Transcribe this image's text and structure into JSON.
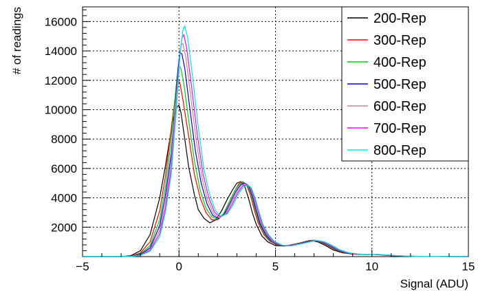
{
  "chart_data": {
    "type": "line",
    "title": "",
    "xlabel": "Signal (ADU)",
    "ylabel": "# of readings",
    "xlim": [
      -5,
      15
    ],
    "ylim": [
      0,
      17000
    ],
    "xticks": [
      -5,
      0,
      5,
      10,
      15
    ],
    "yticks": [
      2000,
      4000,
      6000,
      8000,
      10000,
      12000,
      14000,
      16000
    ],
    "grid": true,
    "legend_position": "top-right",
    "series": [
      {
        "name": "200-Rep",
        "color": "#000000",
        "x": [
          -5,
          -3,
          -2.5,
          -2,
          -1.5,
          -1,
          -0.7,
          -0.5,
          -0.3,
          -0.1,
          0,
          0.1,
          0.3,
          0.5,
          0.8,
          1.0,
          1.3,
          1.6,
          1.9,
          2.2,
          2.5,
          2.8,
          3.0,
          3.2,
          3.4,
          3.6,
          3.8,
          4.0,
          4.3,
          4.6,
          5.0,
          5.5,
          6.0,
          6.5,
          6.8,
          7.2,
          7.6,
          8.0,
          8.5,
          9.0,
          9.5,
          10.0,
          10.5,
          11.0,
          12.0,
          13.0,
          15.0
        ],
        "y": [
          0,
          0,
          60,
          400,
          1500,
          4000,
          6200,
          7800,
          9300,
          10200,
          10300,
          9800,
          8000,
          6100,
          4200,
          3200,
          2600,
          2300,
          2500,
          3100,
          3900,
          4600,
          5000,
          5100,
          4800,
          4000,
          3000,
          2200,
          1400,
          1000,
          750,
          720,
          850,
          1000,
          1100,
          1000,
          750,
          450,
          250,
          170,
          140,
          150,
          110,
          60,
          20,
          5,
          0
        ]
      },
      {
        "name": "300-Rep",
        "color": "#ff0000",
        "x": [
          -5,
          -3,
          -2.5,
          -2,
          -1.5,
          -1,
          -0.7,
          -0.5,
          -0.3,
          -0.15,
          -0.05,
          0.05,
          0.2,
          0.5,
          0.8,
          1.1,
          1.4,
          1.7,
          2.0,
          2.3,
          2.6,
          2.9,
          3.1,
          3.3,
          3.5,
          3.7,
          3.9,
          4.1,
          4.4,
          4.7,
          5.1,
          5.6,
          6.1,
          6.6,
          6.9,
          7.3,
          7.7,
          8.1,
          8.6,
          9.1,
          9.6,
          10.1,
          10.6,
          11.1,
          12.1,
          13.1,
          15.0
        ],
        "y": [
          0,
          0,
          30,
          250,
          1000,
          3100,
          5500,
          7600,
          9800,
          11200,
          12000,
          11800,
          10700,
          8200,
          5600,
          4000,
          3000,
          2500,
          2500,
          2900,
          3700,
          4500,
          4950,
          5100,
          4900,
          4200,
          3200,
          2300,
          1500,
          1050,
          780,
          730,
          860,
          1010,
          1110,
          1010,
          760,
          460,
          255,
          175,
          140,
          150,
          110,
          60,
          20,
          5,
          0
        ]
      },
      {
        "name": "400-Rep",
        "color": "#00cc00",
        "x": [
          -5,
          -3,
          -2.5,
          -2,
          -1.5,
          -1,
          -0.7,
          -0.45,
          -0.25,
          -0.1,
          0.0,
          0.1,
          0.25,
          0.5,
          0.8,
          1.1,
          1.4,
          1.7,
          2.0,
          2.3,
          2.6,
          2.9,
          3.15,
          3.35,
          3.55,
          3.75,
          3.95,
          4.15,
          4.45,
          4.75,
          5.15,
          5.65,
          6.15,
          6.65,
          6.95,
          7.35,
          7.75,
          8.15,
          8.65,
          9.15,
          9.65,
          10.15,
          10.65,
          11.15,
          12.15,
          13.15,
          15.0
        ],
        "y": [
          0,
          0,
          20,
          180,
          750,
          2500,
          4800,
          7400,
          10200,
          12200,
          13000,
          12800,
          11800,
          9300,
          6500,
          4500,
          3300,
          2700,
          2550,
          2900,
          3700,
          4500,
          4950,
          5050,
          4900,
          4200,
          3200,
          2300,
          1500,
          1050,
          780,
          730,
          860,
          1010,
          1110,
          1010,
          760,
          460,
          255,
          175,
          140,
          150,
          110,
          60,
          20,
          5,
          0
        ]
      },
      {
        "name": "500-Rep",
        "color": "#0000cc",
        "x": [
          -5,
          -3,
          -2.5,
          -2,
          -1.5,
          -1,
          -0.7,
          -0.4,
          -0.2,
          -0.05,
          0.05,
          0.15,
          0.3,
          0.55,
          0.85,
          1.15,
          1.45,
          1.75,
          2.05,
          2.35,
          2.65,
          2.95,
          3.2,
          3.4,
          3.6,
          3.8,
          4.0,
          4.2,
          4.5,
          4.8,
          5.2,
          5.7,
          6.2,
          6.7,
          7.0,
          7.4,
          7.8,
          8.2,
          8.7,
          9.2,
          9.7,
          10.2,
          10.7,
          11.2,
          12.2,
          13.2,
          15.0
        ],
        "y": [
          0,
          0,
          15,
          140,
          600,
          2100,
          4200,
          7000,
          10200,
          12800,
          13900,
          13800,
          12800,
          10200,
          7200,
          5000,
          3600,
          2800,
          2600,
          2900,
          3650,
          4450,
          4900,
          5000,
          4850,
          4150,
          3150,
          2250,
          1500,
          1050,
          780,
          730,
          860,
          1010,
          1110,
          1010,
          760,
          460,
          255,
          175,
          140,
          150,
          110,
          60,
          20,
          5,
          0
        ]
      },
      {
        "name": "600-Rep",
        "color": "#c08888",
        "x": [
          -5,
          -3,
          -2.5,
          -2,
          -1.5,
          -1,
          -0.7,
          -0.4,
          -0.2,
          0.0,
          0.1,
          0.2,
          0.35,
          0.6,
          0.9,
          1.2,
          1.5,
          1.8,
          2.1,
          2.4,
          2.7,
          3.0,
          3.25,
          3.45,
          3.65,
          3.85,
          4.05,
          4.25,
          4.55,
          4.85,
          5.25,
          5.75,
          6.25,
          6.75,
          7.05,
          7.45,
          7.85,
          8.25,
          8.75,
          9.25,
          9.75,
          10.25,
          10.75,
          11.25,
          12.25,
          13.25,
          15.0
        ],
        "y": [
          0,
          0,
          10,
          110,
          500,
          1800,
          3700,
          6500,
          10000,
          13100,
          14400,
          14500,
          13600,
          11000,
          7800,
          5300,
          3800,
          2900,
          2650,
          2900,
          3600,
          4400,
          4850,
          4950,
          4800,
          4100,
          3100,
          2250,
          1500,
          1050,
          780,
          730,
          860,
          1010,
          1110,
          1010,
          760,
          460,
          255,
          175,
          140,
          150,
          110,
          60,
          20,
          5,
          0
        ]
      },
      {
        "name": "700-Rep",
        "color": "#ff00ff",
        "x": [
          -5,
          -3,
          -2.5,
          -2,
          -1.5,
          -1,
          -0.7,
          -0.4,
          -0.15,
          0.05,
          0.15,
          0.25,
          0.4,
          0.65,
          0.95,
          1.25,
          1.55,
          1.85,
          2.15,
          2.45,
          2.75,
          3.05,
          3.3,
          3.5,
          3.7,
          3.9,
          4.1,
          4.3,
          4.6,
          4.9,
          5.3,
          5.8,
          6.3,
          6.8,
          7.1,
          7.5,
          7.9,
          8.3,
          8.8,
          9.3,
          9.8,
          10.3,
          10.8,
          11.3,
          12.3,
          13.3,
          15.0
        ],
        "y": [
          0,
          0,
          8,
          90,
          420,
          1550,
          3300,
          6000,
          10000,
          13600,
          14900,
          15100,
          14200,
          11600,
          8300,
          5600,
          4000,
          3000,
          2700,
          2900,
          3550,
          4350,
          4800,
          4900,
          4750,
          4050,
          3100,
          2250,
          1500,
          1050,
          780,
          730,
          860,
          1010,
          1110,
          1010,
          760,
          460,
          255,
          175,
          140,
          150,
          110,
          60,
          20,
          5,
          0
        ]
      },
      {
        "name": "800-Rep",
        "color": "#00e5e5",
        "x": [
          -5,
          -3,
          -2.5,
          -2,
          -1.5,
          -1,
          -0.7,
          -0.4,
          -0.15,
          0.05,
          0.2,
          0.3,
          0.45,
          0.7,
          1.0,
          1.3,
          1.6,
          1.9,
          2.2,
          2.5,
          2.8,
          3.1,
          3.35,
          3.55,
          3.75,
          3.95,
          4.15,
          4.35,
          4.65,
          4.95,
          5.35,
          5.85,
          6.35,
          6.85,
          7.15,
          7.55,
          7.95,
          8.35,
          8.85,
          9.35,
          9.85,
          10.35,
          10.85,
          11.35,
          12.35,
          13.35,
          15.0
        ],
        "y": [
          0,
          0,
          6,
          75,
          360,
          1350,
          3000,
          5600,
          9700,
          13700,
          15400,
          15700,
          14900,
          12300,
          8800,
          5900,
          4200,
          3100,
          2750,
          2900,
          3500,
          4300,
          4750,
          4850,
          4700,
          4000,
          3050,
          2200,
          1480,
          1040,
          780,
          730,
          860,
          1010,
          1110,
          1010,
          760,
          460,
          255,
          175,
          140,
          150,
          110,
          60,
          20,
          5,
          0
        ]
      }
    ]
  }
}
